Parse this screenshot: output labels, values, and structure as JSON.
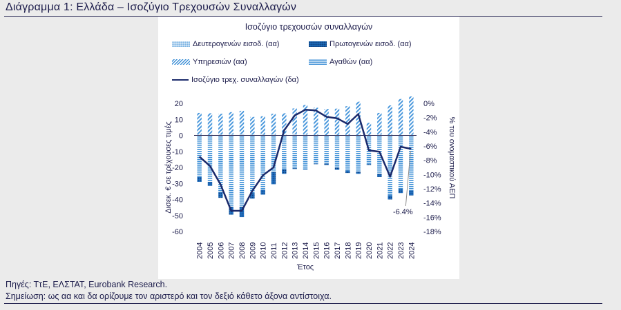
{
  "header": {
    "title": "Διάγραμμα 1: Ελλάδα – Ισοζύγιο Τρεχουσών Συναλλαγών"
  },
  "chart_data": {
    "type": "bar",
    "title": "Ισοζύγιο τρεχουσών συναλλαγών",
    "xlabel": "Έτος",
    "ylabel": "Δισεκ. € σε τρέχουσες τιμές",
    "y2label": "% του ονομαστικού ΑΕΠ",
    "ylim": [
      -60,
      20
    ],
    "yticks": [
      -60,
      -50,
      -40,
      -30,
      -20,
      -10,
      0,
      10,
      20
    ],
    "y2lim": [
      -18,
      0
    ],
    "y2ticks": [
      "0%",
      "-2%",
      "-4%",
      "-6%",
      "-8%",
      "-10%",
      "-12%",
      "-14%",
      "-16%",
      "-18%"
    ],
    "categories": [
      "2004",
      "2005",
      "2006",
      "2007",
      "2008",
      "2009",
      "2010",
      "2011",
      "2012",
      "2013",
      "2014",
      "2015",
      "2016",
      "2017",
      "2018",
      "2019",
      "2020",
      "2021",
      "2022",
      "2023",
      "2024"
    ],
    "series": [
      {
        "name": "Δευτερογενών εισοδ. (αα)",
        "axis": "left",
        "style": "dots",
        "values": [
          0.5,
          0.3,
          0.5,
          0.5,
          0.8,
          0.5,
          0.4,
          0.5,
          0.3,
          0.8,
          0.5,
          0.3,
          0.0,
          0.2,
          0.2,
          -0.1,
          0.3,
          0.5,
          0.2,
          0.2,
          0.3
        ]
      },
      {
        "name": "Πρωτογενών εισοδ. (αα)",
        "axis": "left",
        "style": "solid",
        "values": [
          -3.0,
          -2.5,
          -3.5,
          -5.0,
          -6.5,
          -3.5,
          -3.0,
          -7.5,
          -3.0,
          -0.5,
          -0.5,
          -0.5,
          -1.0,
          -1.5,
          -1.5,
          -1.5,
          -0.5,
          -2.0,
          -2.5,
          -2.5,
          -3.0
        ]
      },
      {
        "name": "Υπηρεσιών (αα)",
        "axis": "left",
        "style": "diagonal",
        "values": [
          13.5,
          13.5,
          13.0,
          14.0,
          14.5,
          11.0,
          11.5,
          13.0,
          13.5,
          16.0,
          18.5,
          17.0,
          16.5,
          16.5,
          18.0,
          21.0,
          7.5,
          13.5,
          18.5,
          22.5,
          24.0
        ]
      },
      {
        "name": "Αγαθών (αα)",
        "axis": "left",
        "style": "horizontal",
        "values": [
          -26.0,
          -29.0,
          -35.5,
          -44.5,
          -44.5,
          -36.0,
          -34.0,
          -23.0,
          -21.0,
          -20.5,
          -21.0,
          -17.5,
          -17.5,
          -20.0,
          -22.0,
          -22.5,
          -18.0,
          -24.0,
          -37.5,
          -33.5,
          -34.5
        ]
      },
      {
        "name": "Ισοζύγιο τρεχ. συναλλαγών (δα)",
        "axis": "right",
        "style": "line",
        "values": [
          -7.5,
          -8.8,
          -11.4,
          -15.1,
          -15.1,
          -12.3,
          -10.1,
          -9.0,
          -3.8,
          -1.7,
          -0.9,
          -1.0,
          -1.9,
          -2.1,
          -2.9,
          -1.5,
          -6.6,
          -6.8,
          -10.3,
          -6.1,
          -6.4
        ]
      }
    ],
    "annotations": [
      {
        "text": "-6.4%",
        "x": "2024",
        "y2": -6.4
      }
    ],
    "grid": false,
    "legend": "top"
  },
  "footer": {
    "sources": "Πηγές: ΤτΕ, ΕΛΣΤΑΤ, Eurobank Research.",
    "note": "Σημείωση: ως αα και δα ορίζουμε τον αριστερό και τον δεξιό κάθετο άξονα αντίστοιχα."
  }
}
